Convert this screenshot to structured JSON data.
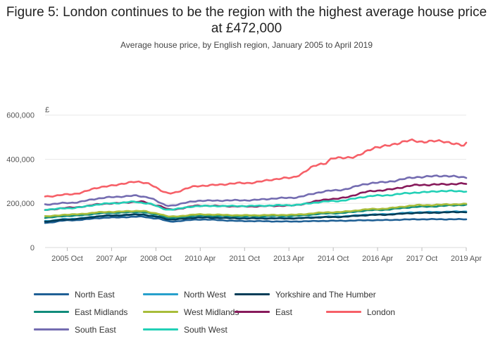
{
  "page": {
    "title": "Figure 5: London continues to be the region with the highest average house price at £472,000",
    "subtitle": "Average house price, by English region, January 2005 to April 2019"
  },
  "chart_data": {
    "type": "line",
    "title": "Figure 5: London continues to be the region with the highest average house price at £472,000",
    "subtitle": "Average house price, by English region, January 2005 to April 2019",
    "ylabel": "£",
    "ylim": [
      0,
      650000
    ],
    "yticks": [
      0,
      200000,
      400000,
      600000
    ],
    "ytick_labels": [
      "0",
      "200,000",
      "400,000",
      "600,000"
    ],
    "x_range": [
      "2005-01",
      "2019-04"
    ],
    "xtick_labels": [
      "2005 Oct",
      "2007 Apr",
      "2008 Oct",
      "2010 Apr",
      "2011 Oct",
      "2013 Apr",
      "2014 Oct",
      "2016 Apr",
      "2017 Oct",
      "2019 Apr"
    ],
    "grid": "horizontal",
    "legend_position": "bottom",
    "series": [
      {
        "name": "North East",
        "color": "#206095",
        "points": [
          [
            "2005-01",
            112000
          ],
          [
            "2005-10",
            123000
          ],
          [
            "2007-04",
            136000
          ],
          [
            "2008-04",
            140000
          ],
          [
            "2008-10",
            132000
          ],
          [
            "2009-04",
            118000
          ],
          [
            "2010-04",
            127000
          ],
          [
            "2011-10",
            120000
          ],
          [
            "2013-04",
            118000
          ],
          [
            "2014-10",
            121000
          ],
          [
            "2016-04",
            124000
          ],
          [
            "2017-10",
            128000
          ],
          [
            "2019-04",
            128000
          ]
        ]
      },
      {
        "name": "North West",
        "color": "#27a0cc",
        "points": [
          [
            "2005-01",
            120000
          ],
          [
            "2005-10",
            129000
          ],
          [
            "2007-04",
            145000
          ],
          [
            "2008-04",
            150000
          ],
          [
            "2008-10",
            140000
          ],
          [
            "2009-04",
            128000
          ],
          [
            "2010-04",
            138000
          ],
          [
            "2011-10",
            134000
          ],
          [
            "2013-04",
            133000
          ],
          [
            "2014-10",
            140000
          ],
          [
            "2016-04",
            150000
          ],
          [
            "2017-10",
            160000
          ],
          [
            "2019-04",
            163000
          ]
        ]
      },
      {
        "name": "Yorkshire and The Humber",
        "color": "#003c57",
        "points": [
          [
            "2005-01",
            118000
          ],
          [
            "2005-10",
            127000
          ],
          [
            "2007-04",
            145000
          ],
          [
            "2008-04",
            150000
          ],
          [
            "2008-10",
            140000
          ],
          [
            "2009-04",
            127000
          ],
          [
            "2010-04",
            136000
          ],
          [
            "2011-10",
            132000
          ],
          [
            "2013-04",
            132000
          ],
          [
            "2014-10",
            138000
          ],
          [
            "2016-04",
            148000
          ],
          [
            "2017-10",
            157000
          ],
          [
            "2019-04",
            161000
          ]
        ]
      },
      {
        "name": "East Midlands",
        "color": "#118c7b",
        "points": [
          [
            "2005-01",
            135000
          ],
          [
            "2005-10",
            143000
          ],
          [
            "2007-04",
            157000
          ],
          [
            "2008-04",
            161000
          ],
          [
            "2008-10",
            150000
          ],
          [
            "2009-04",
            135000
          ],
          [
            "2010-04",
            145000
          ],
          [
            "2011-10",
            142000
          ],
          [
            "2013-04",
            143000
          ],
          [
            "2014-10",
            155000
          ],
          [
            "2016-04",
            170000
          ],
          [
            "2017-10",
            185000
          ],
          [
            "2019-04",
            193000
          ]
        ]
      },
      {
        "name": "West Midlands",
        "color": "#a8bd3a",
        "points": [
          [
            "2005-01",
            141000
          ],
          [
            "2005-10",
            149000
          ],
          [
            "2007-04",
            162000
          ],
          [
            "2008-04",
            166000
          ],
          [
            "2008-10",
            155000
          ],
          [
            "2009-04",
            140000
          ],
          [
            "2010-04",
            150000
          ],
          [
            "2011-10",
            146000
          ],
          [
            "2013-04",
            148000
          ],
          [
            "2014-10",
            160000
          ],
          [
            "2016-04",
            175000
          ],
          [
            "2017-10",
            192000
          ],
          [
            "2019-04",
            197000
          ]
        ]
      },
      {
        "name": "East",
        "color": "#871a5b",
        "points": [
          [
            "2005-01",
            170000
          ],
          [
            "2005-10",
            180000
          ],
          [
            "2007-04",
            200000
          ],
          [
            "2008-04",
            208000
          ],
          [
            "2008-10",
            192000
          ],
          [
            "2009-04",
            172000
          ],
          [
            "2010-04",
            190000
          ],
          [
            "2011-10",
            186000
          ],
          [
            "2013-04",
            190000
          ],
          [
            "2014-10",
            220000
          ],
          [
            "2016-04",
            258000
          ],
          [
            "2017-10",
            284000
          ],
          [
            "2019-04",
            289000
          ]
        ]
      },
      {
        "name": "London",
        "color": "#f66068",
        "points": [
          [
            "2005-01",
            231000
          ],
          [
            "2005-10",
            240000
          ],
          [
            "2007-04",
            280000
          ],
          [
            "2008-01",
            298000
          ],
          [
            "2008-06",
            292000
          ],
          [
            "2009-03",
            246000
          ],
          [
            "2010-04",
            280000
          ],
          [
            "2011-10",
            292000
          ],
          [
            "2013-04",
            315000
          ],
          [
            "2014-06",
            380000
          ],
          [
            "2014-10",
            404000
          ],
          [
            "2015-06",
            410000
          ],
          [
            "2016-04",
            455000
          ],
          [
            "2017-06",
            484000
          ],
          [
            "2017-10",
            480000
          ],
          [
            "2018-06",
            482000
          ],
          [
            "2019-03",
            462000
          ],
          [
            "2019-04",
            472000
          ]
        ]
      },
      {
        "name": "South East",
        "color": "#746cb1",
        "points": [
          [
            "2005-01",
            195000
          ],
          [
            "2005-10",
            202000
          ],
          [
            "2007-04",
            228000
          ],
          [
            "2008-01",
            235000
          ],
          [
            "2008-06",
            229000
          ],
          [
            "2009-03",
            190000
          ],
          [
            "2010-04",
            212000
          ],
          [
            "2011-10",
            214000
          ],
          [
            "2013-04",
            225000
          ],
          [
            "2014-10",
            258000
          ],
          [
            "2016-04",
            294000
          ],
          [
            "2017-10",
            320000
          ],
          [
            "2018-06",
            325000
          ],
          [
            "2019-04",
            318000
          ]
        ]
      },
      {
        "name": "South West",
        "color": "#22d0b6",
        "points": [
          [
            "2005-01",
            172000
          ],
          [
            "2005-10",
            178000
          ],
          [
            "2007-04",
            200000
          ],
          [
            "2008-01",
            207000
          ],
          [
            "2008-06",
            201000
          ],
          [
            "2009-03",
            172000
          ],
          [
            "2010-04",
            188000
          ],
          [
            "2011-10",
            188000
          ],
          [
            "2013-04",
            192000
          ],
          [
            "2014-10",
            210000
          ],
          [
            "2016-04",
            235000
          ],
          [
            "2017-10",
            250000
          ],
          [
            "2018-06",
            256000
          ],
          [
            "2019-04",
            255000
          ]
        ]
      }
    ]
  }
}
